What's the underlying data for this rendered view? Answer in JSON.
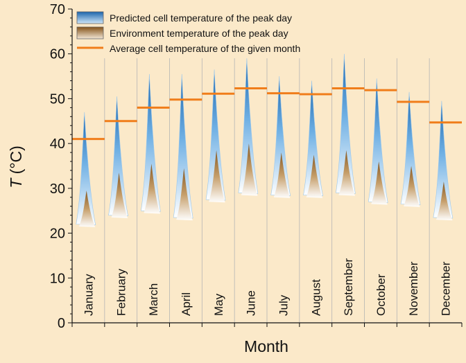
{
  "chart_data": {
    "type": "area",
    "xlabel": "Month",
    "ylabel_symbol": "T",
    "ylabel_unit": " (°C)",
    "ylim": [
      0,
      70
    ],
    "yticks": [
      0,
      10,
      20,
      30,
      40,
      50,
      60,
      70
    ],
    "categories": [
      "January",
      "February",
      "March",
      "April",
      "May",
      "June",
      "July",
      "August",
      "September",
      "October",
      "November",
      "December"
    ],
    "series": [
      {
        "name": "Predicted cell temperature of the peak day",
        "peak": [
          47,
          50.5,
          55.5,
          55.5,
          56.5,
          59,
          55,
          54,
          60,
          54.5,
          51.5,
          49.5
        ],
        "base": [
          22,
          24,
          25,
          23.5,
          27.5,
          29,
          28.5,
          28.5,
          29,
          27,
          26.5,
          23.5
        ]
      },
      {
        "name": "Environment temperature of the peak day",
        "peak": [
          29.5,
          33.5,
          35.5,
          34.5,
          38.5,
          40,
          38,
          37.5,
          38.5,
          36,
          35,
          31.5
        ],
        "base": [
          22,
          24,
          25,
          23.5,
          27.5,
          29,
          28.5,
          28.5,
          29,
          27,
          26.5,
          23.5
        ]
      },
      {
        "name": "Average cell temperature of the given month",
        "values": [
          41,
          45,
          48,
          49.8,
          51.1,
          52.3,
          51.2,
          51,
          52.3,
          51.9,
          49.3,
          44.7
        ]
      }
    ],
    "colors": {
      "predicted_top": "#1f6fb5",
      "predicted_bottom": "#ffffff",
      "environment_top": "#8a5a1e",
      "environment_bottom": "#ffffff",
      "average": "#f07d1a",
      "background": "#fbe9c9",
      "grid": "#aaaaaa"
    },
    "grid": "vertical separators between months",
    "legend_position": "top-left"
  }
}
